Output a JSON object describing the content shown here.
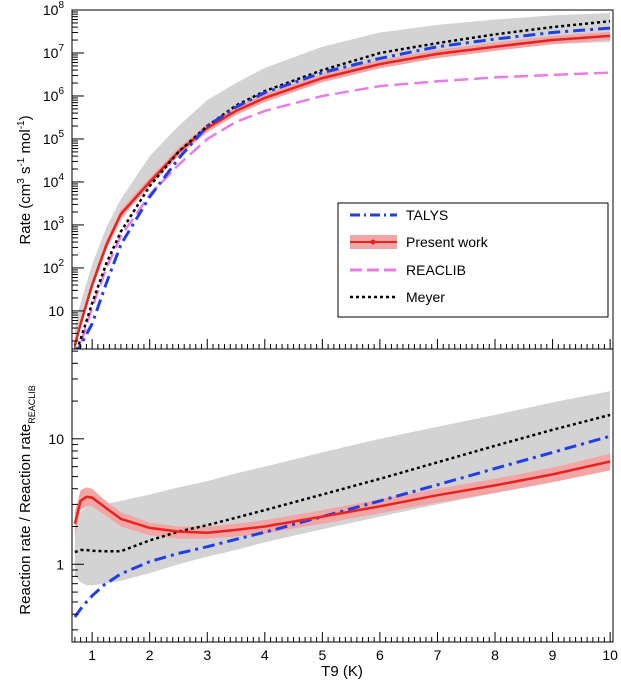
{
  "chart_data": [
    {
      "type": "line",
      "panel": "top",
      "ylabel_main": "Rate (cm",
      "ylabel_sup1": "3",
      "ylabel_mid": " s",
      "ylabel_sup2": "-1",
      "ylabel_end": " mol",
      "ylabel_sup3": "-1",
      "ylabel_close": ")",
      "yscale": "log",
      "xlim": [
        0.65,
        10.05
      ],
      "ylim": [
        1.3,
        100000000
      ],
      "yticks": [
        {
          "value": 10,
          "base": "10",
          "exp": ""
        },
        {
          "value": 100,
          "base": "10",
          "exp": "2"
        },
        {
          "value": 1000,
          "base": "10",
          "exp": "3"
        },
        {
          "value": 10000,
          "base": "10",
          "exp": "4"
        },
        {
          "value": 100000,
          "base": "10",
          "exp": "5"
        },
        {
          "value": 1000000,
          "base": "10",
          "exp": "6"
        },
        {
          "value": 10000000,
          "base": "10",
          "exp": "7"
        },
        {
          "value": 100000000,
          "base": "10",
          "exp": "8"
        }
      ],
      "legend": {
        "position": "center-right",
        "entries": [
          "TALYS",
          "Present work",
          "REACLIB",
          "Meyer"
        ]
      },
      "x": [
        0.7,
        0.8,
        1.0,
        1.25,
        1.5,
        2,
        2.5,
        3,
        3.5,
        4,
        5,
        6,
        7,
        8,
        9,
        10
      ],
      "band": {
        "upper": [
          4,
          15,
          120,
          900,
          4000,
          40000,
          200000,
          800000,
          2000000,
          4500000,
          14000000,
          30000000,
          45000000,
          60000000,
          75000000,
          85000000
        ],
        "lower": [
          1,
          4,
          30,
          250,
          1200,
          12000,
          60000,
          200000,
          500000,
          1100000,
          3000000,
          6000000,
          10000000,
          14000000,
          16000000,
          18000000
        ]
      },
      "series": [
        {
          "name": "TALYS",
          "color": "#1f3fe8",
          "style": "dashdot",
          "values": [
            0.9,
            1.6,
            5,
            45,
            350,
            4500,
            35000,
            200000,
            550000,
            1200000,
            3500000,
            7500000,
            14000000,
            21000000,
            30000000,
            38000000
          ]
        },
        {
          "name": "Present work",
          "color": "#e8231f",
          "style": "solid",
          "values": [
            1.6,
            5,
            40,
            350,
            1800,
            10000,
            50000,
            180000,
            450000,
            900000,
            2600000,
            5500000,
            9500000,
            14000000,
            20000000,
            25000000
          ]
        },
        {
          "name": "REACLIB",
          "color": "#e87ce8",
          "style": "dashed",
          "values": [
            0.7,
            1.7,
            12,
            100,
            550,
            5000,
            25000,
            100000,
            250000,
            450000,
            1000000,
            1700000,
            2200000,
            2700000,
            3100000,
            3500000
          ]
        },
        {
          "name": "Meyer",
          "color": "#000000",
          "style": "dotted",
          "values": [
            0.9,
            2.2,
            15,
            130,
            700,
            8000,
            50000,
            200000,
            600000,
            1300000,
            4000000,
            10000000,
            17000000,
            27000000,
            40000000,
            55000000
          ]
        }
      ]
    },
    {
      "type": "line",
      "panel": "bottom",
      "ylabel": "Reaction rate / Reaction rate",
      "ylabel_sub": "REACLIB",
      "xlabel": "T9 (K)",
      "yscale": "log",
      "xlim": [
        0.65,
        10.05
      ],
      "ylim": [
        0.24,
        52
      ],
      "xticks": [
        "1",
        "2",
        "3",
        "4",
        "5",
        "6",
        "7",
        "8",
        "9",
        "10"
      ],
      "yticks": [
        {
          "value": 1,
          "label": "1"
        },
        {
          "value": 10,
          "label": "10"
        }
      ],
      "x": [
        0.7,
        0.8,
        0.9,
        1.0,
        1.2,
        1.5,
        2,
        2.5,
        3,
        3.5,
        4,
        5,
        6,
        7,
        8,
        9,
        10
      ],
      "band": {
        "upper": [
          2.0,
          2.6,
          2.9,
          3.0,
          3.0,
          3.2,
          3.6,
          4.1,
          4.6,
          5.3,
          6.0,
          7.8,
          10.0,
          12.5,
          15.5,
          19.5,
          24.0
        ],
        "lower": [
          0.8,
          0.72,
          0.68,
          0.68,
          0.7,
          0.74,
          0.85,
          1.0,
          1.15,
          1.3,
          1.5,
          1.9,
          2.4,
          3.0,
          3.7,
          4.6,
          5.6
        ]
      },
      "present_band": {
        "upper": [
          2.6,
          3.9,
          4.1,
          4.0,
          3.3,
          2.6,
          2.15,
          2.0,
          2.0,
          2.1,
          2.25,
          2.7,
          3.3,
          4.0,
          4.8,
          5.9,
          7.6
        ],
        "lower": [
          1.7,
          2.7,
          2.9,
          2.9,
          2.5,
          2.0,
          1.7,
          1.6,
          1.6,
          1.66,
          1.76,
          2.1,
          2.55,
          3.1,
          3.7,
          4.5,
          5.6
        ]
      },
      "series": [
        {
          "name": "TALYS",
          "color": "#1f3fe8",
          "style": "dashdot",
          "values": [
            0.38,
            0.44,
            0.5,
            0.56,
            0.68,
            0.84,
            1.05,
            1.22,
            1.38,
            1.58,
            1.8,
            2.4,
            3.2,
            4.3,
            5.8,
            7.8,
            10.5
          ]
        },
        {
          "name": "Present work",
          "color": "#e8231f",
          "style": "solid",
          "values": [
            2.1,
            3.2,
            3.45,
            3.4,
            2.9,
            2.3,
            1.95,
            1.82,
            1.78,
            1.88,
            2.0,
            2.4,
            2.9,
            3.55,
            4.25,
            5.2,
            6.6
          ]
        },
        {
          "name": "Meyer",
          "color": "#000000",
          "style": "dotted",
          "values": [
            1.25,
            1.3,
            1.3,
            1.28,
            1.27,
            1.27,
            1.55,
            1.82,
            2.05,
            2.35,
            2.7,
            3.6,
            4.8,
            6.5,
            8.8,
            11.8,
            15.5
          ]
        }
      ]
    }
  ]
}
